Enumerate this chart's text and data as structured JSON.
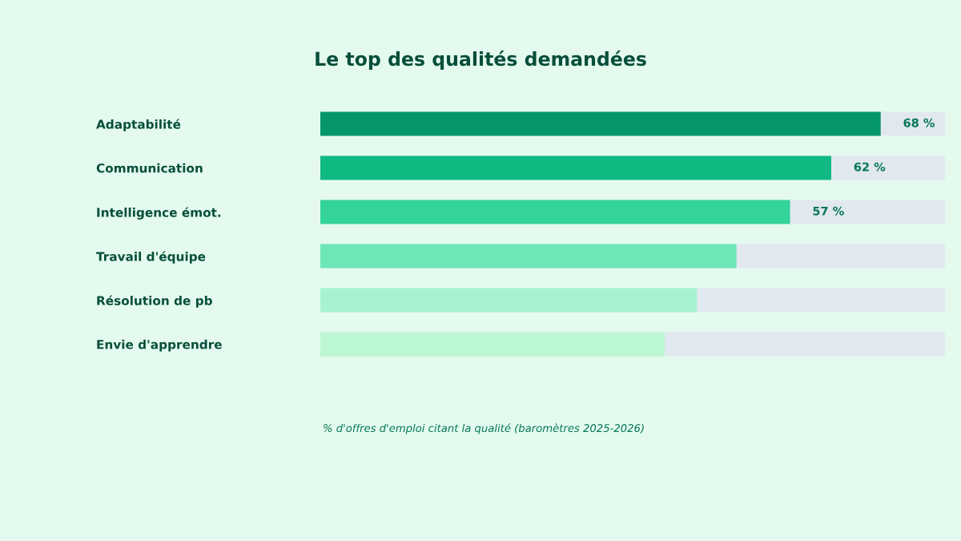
{
  "chart_data": {
    "type": "bar",
    "orientation": "horizontal",
    "title": "Le top des qualités demandées",
    "categories": [
      "Adaptabilité",
      "Communication",
      "Intelligence émot.",
      "Travail d'équipe",
      "Résolution de pb",
      "Envie d'apprendre"
    ],
    "values": [
      68,
      62,
      57,
      50.5,
      45.7,
      41.8
    ],
    "value_labels": [
      "68 %",
      "62 %",
      "57 %",
      null,
      null,
      null
    ],
    "colors": [
      "#059669",
      "#10b981",
      "#34d399",
      "#6ee7b7",
      "#a7f3d0",
      "#bbf7d0"
    ],
    "xlim": [
      0,
      75.8
    ],
    "tick_labels": "y",
    "grid": false,
    "annotations": [
      "% d'offres d'emploi citant la qualité (baromètres 2025-2026)"
    ]
  }
}
